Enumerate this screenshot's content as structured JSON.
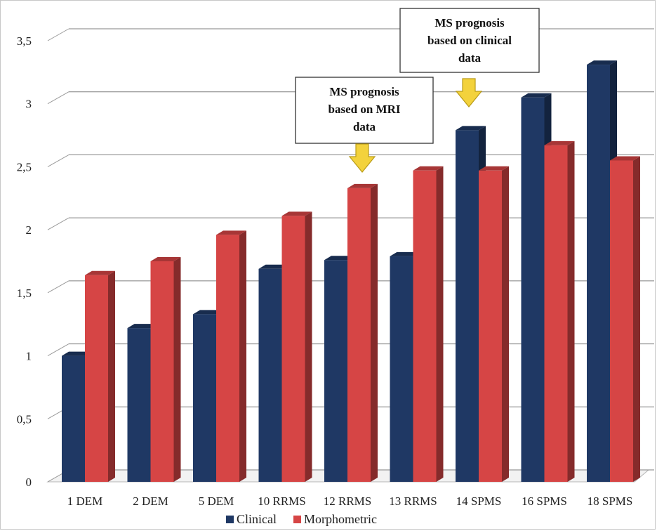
{
  "chart_data": {
    "type": "bar",
    "categories": [
      "1 DEM",
      "2 DEM",
      "5 DEM",
      "10 RRMS",
      "12 RRMS",
      "13 RRMS",
      "14 SPMS",
      "16 SPMS",
      "18 SPMS"
    ],
    "series": [
      {
        "name": "Clinical",
        "color": "#1f3864",
        "values": [
          1.0,
          1.22,
          1.33,
          1.69,
          1.76,
          1.79,
          2.79,
          3.05,
          3.31
        ]
      },
      {
        "name": "Morphometric",
        "color": "#d64545",
        "values": [
          1.64,
          1.75,
          1.96,
          2.11,
          2.33,
          2.47,
          2.47,
          2.67,
          2.55
        ]
      }
    ],
    "y_ticks": [
      "0",
      "0,5",
      "1",
      "1,5",
      "2",
      "2,5",
      "3",
      "3,5"
    ],
    "ylim": [
      0,
      3.5
    ],
    "grid": true,
    "legend_position": "bottom",
    "annotations": [
      {
        "lines": [
          "MS prognosis",
          "based on MRI",
          "data"
        ],
        "points_to": "12 RRMS"
      },
      {
        "lines": [
          "MS prognosis",
          "based on clinical",
          "data"
        ],
        "points_to": "14 SPMS"
      }
    ]
  }
}
